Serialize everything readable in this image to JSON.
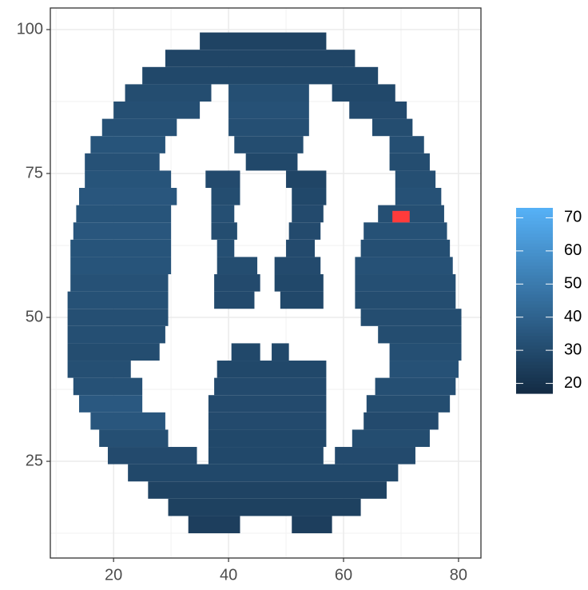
{
  "chart_data": {
    "type": "heatmap",
    "xlim": [
      9.0,
      83.9
    ],
    "xticks": [
      20,
      40,
      60,
      80
    ],
    "ylim": [
      8.2,
      103.75
    ],
    "yticks": [
      25,
      50,
      75,
      100
    ],
    "grid": true,
    "colorbar": {
      "limits": [
        17,
        73
      ],
      "ticks": [
        20,
        30,
        40,
        50,
        60,
        70
      ],
      "low": "#132B43",
      "high": "#56B1F7"
    },
    "bands": [
      {
        "y": [
          96.5,
          99.5
        ],
        "spans": [
          [
            35,
            57,
            27
          ]
        ]
      },
      {
        "y": [
          93.5,
          96.5
        ],
        "spans": [
          [
            29,
            62,
            28
          ]
        ]
      },
      {
        "y": [
          90.5,
          93.5
        ],
        "spans": [
          [
            25,
            66,
            29
          ]
        ]
      },
      {
        "y": [
          87.5,
          90.5
        ],
        "spans": [
          [
            22,
            37,
            31
          ],
          [
            40,
            54,
            32
          ],
          [
            58,
            69,
            29
          ]
        ]
      },
      {
        "y": [
          84.5,
          87.5
        ],
        "spans": [
          [
            20,
            35,
            32
          ],
          [
            40,
            54,
            33
          ],
          [
            61,
            71,
            30
          ]
        ]
      },
      {
        "y": [
          81.5,
          84.5
        ],
        "spans": [
          [
            18,
            31,
            33
          ],
          [
            40,
            54,
            32
          ],
          [
            65,
            72,
            31
          ]
        ]
      },
      {
        "y": [
          78.5,
          81.5
        ],
        "spans": [
          [
            16,
            29,
            34
          ],
          [
            41,
            53,
            31
          ],
          [
            68,
            74,
            32
          ]
        ]
      },
      {
        "y": [
          75.5,
          78.5
        ],
        "spans": [
          [
            15,
            28,
            33
          ],
          [
            43,
            52,
            29
          ],
          [
            68,
            75,
            31
          ]
        ]
      },
      {
        "y": [
          72.5,
          75.5
        ],
        "spans": [
          [
            15,
            30,
            34
          ],
          [
            36,
            42,
            30
          ],
          [
            50,
            57,
            28
          ],
          [
            69,
            76,
            32
          ]
        ]
      },
      {
        "y": [
          69.5,
          72.5
        ],
        "spans": [
          [
            14,
            31,
            35
          ],
          [
            37,
            42,
            31
          ],
          [
            51,
            57,
            29
          ],
          [
            69,
            77,
            33
          ]
        ]
      },
      {
        "y": [
          66.5,
          69.5
        ],
        "spans": [
          [
            13.5,
            30,
            34
          ],
          [
            37,
            41,
            32
          ],
          [
            51,
            56.5,
            30
          ],
          [
            66,
            77.5,
            32
          ]
        ]
      },
      {
        "y": [
          63.5,
          66.5
        ],
        "spans": [
          [
            13,
            30,
            35
          ],
          [
            37,
            41.5,
            31
          ],
          [
            50.5,
            56,
            30
          ],
          [
            63.5,
            78,
            33
          ]
        ]
      },
      {
        "y": [
          60.5,
          63.5
        ],
        "spans": [
          [
            12.5,
            30,
            34
          ],
          [
            38,
            41,
            32
          ],
          [
            50,
            55,
            30
          ],
          [
            63,
            78.5,
            32
          ]
        ]
      },
      {
        "y": [
          57.5,
          60.5
        ],
        "spans": [
          [
            12.5,
            30,
            34
          ],
          [
            38,
            45,
            31
          ],
          [
            48,
            56,
            30
          ],
          [
            62,
            79,
            33
          ]
        ]
      },
      {
        "y": [
          54.5,
          57.5
        ],
        "spans": [
          [
            12.5,
            29.5,
            33
          ],
          [
            37.5,
            45.5,
            30
          ],
          [
            48,
            56.5,
            29
          ],
          [
            62,
            79.5,
            32
          ]
        ]
      },
      {
        "y": [
          51.5,
          54.5
        ],
        "spans": [
          [
            12,
            29.5,
            33
          ],
          [
            37.5,
            44.5,
            30
          ],
          [
            49,
            56.5,
            29
          ],
          [
            62,
            79.5,
            31
          ]
        ]
      },
      {
        "y": [
          48.5,
          51.5
        ],
        "spans": [
          [
            12,
            29.5,
            32
          ],
          [
            63,
            80.5,
            31
          ]
        ]
      },
      {
        "y": [
          45.5,
          48.5
        ],
        "spans": [
          [
            12,
            29,
            32
          ],
          [
            66,
            80.5,
            31
          ]
        ]
      },
      {
        "y": [
          42.5,
          45.5
        ],
        "spans": [
          [
            12,
            28,
            31
          ],
          [
            40.5,
            45.5,
            29
          ],
          [
            47.5,
            50.5,
            29
          ],
          [
            68,
            80.5,
            32
          ]
        ]
      },
      {
        "y": [
          39.5,
          42.5
        ],
        "spans": [
          [
            12,
            23,
            32
          ],
          [
            38,
            57,
            29
          ],
          [
            68,
            80,
            33
          ]
        ]
      },
      {
        "y": [
          36.5,
          39.5
        ],
        "spans": [
          [
            13,
            25,
            33
          ],
          [
            37.5,
            57,
            30
          ],
          [
            65.5,
            79.5,
            32
          ]
        ]
      },
      {
        "y": [
          33.5,
          36.5
        ],
        "spans": [
          [
            14,
            25,
            36
          ],
          [
            36.5,
            57,
            30
          ],
          [
            64,
            78.5,
            31
          ]
        ]
      },
      {
        "y": [
          30.5,
          33.5
        ],
        "spans": [
          [
            16,
            29,
            35
          ],
          [
            36.5,
            57,
            30
          ],
          [
            63.5,
            76.5,
            30
          ]
        ]
      },
      {
        "y": [
          27.5,
          30.5
        ],
        "spans": [
          [
            17.5,
            29.5,
            32
          ],
          [
            36.5,
            57,
            29
          ],
          [
            61.5,
            75,
            31
          ]
        ]
      },
      {
        "y": [
          24.5,
          27.5
        ],
        "spans": [
          [
            19,
            34.5,
            30
          ],
          [
            36.5,
            56.5,
            29
          ],
          [
            58.5,
            72.5,
            30
          ]
        ]
      },
      {
        "y": [
          21.5,
          24.5
        ],
        "spans": [
          [
            22.5,
            69.5,
            29
          ]
        ]
      },
      {
        "y": [
          18.5,
          21.5
        ],
        "spans": [
          [
            26,
            67.5,
            27
          ]
        ]
      },
      {
        "y": [
          15.5,
          18.5
        ],
        "spans": [
          [
            29.5,
            63,
            26
          ]
        ]
      },
      {
        "y": [
          12.5,
          15.5
        ],
        "spans": [
          [
            33,
            42,
            25
          ],
          [
            51,
            58,
            25
          ]
        ]
      }
    ],
    "highlight": {
      "color": "#ff3b3b",
      "x": [
        68.5,
        71.5
      ],
      "y": [
        66.5,
        68.5
      ]
    }
  }
}
